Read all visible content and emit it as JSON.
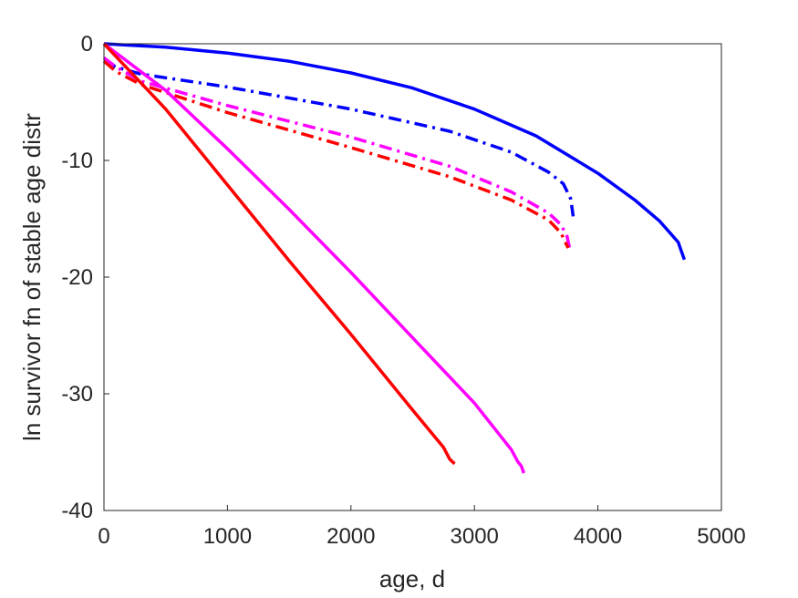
{
  "chart_data": {
    "type": "line",
    "title": "",
    "xlabel": "age, d",
    "ylabel": "ln survivor fn of stable age distr",
    "xlim": [
      0,
      5000
    ],
    "ylim": [
      -40,
      0
    ],
    "xticks": [
      0,
      1000,
      2000,
      3000,
      4000,
      5000
    ],
    "yticks": [
      0,
      -10,
      -20,
      -30,
      -40
    ],
    "xtick_labels": [
      "0",
      "1000",
      "2000",
      "3000",
      "4000",
      "5000"
    ],
    "ytick_labels": [
      "0",
      "-10",
      "-20",
      "-30",
      "-40"
    ],
    "grid": false,
    "legend": "none",
    "series": [
      {
        "color": "#0000ff",
        "style": "solid",
        "x": [
          0,
          500,
          1000,
          1500,
          2000,
          2500,
          3000,
          3500,
          4000,
          4300,
          4500,
          4650,
          4700
        ],
        "y": [
          0,
          -0.3,
          -0.8,
          -1.5,
          -2.5,
          -3.8,
          -5.6,
          -7.9,
          -11.1,
          -13.4,
          -15.2,
          -17.0,
          -18.5
        ]
      },
      {
        "color": "#0000ff",
        "style": "dashdot",
        "x": [
          0,
          100,
          300,
          1000,
          2000,
          2800,
          3300,
          3600,
          3720,
          3780,
          3800
        ],
        "y": [
          -1.5,
          -2.0,
          -2.6,
          -3.7,
          -5.6,
          -7.5,
          -9.3,
          -11.0,
          -12.0,
          -13.3,
          -14.8
        ]
      },
      {
        "color": "#ff00ff",
        "style": "dashdot",
        "x": [
          0,
          100,
          300,
          1000,
          2000,
          2800,
          3300,
          3600,
          3700,
          3750,
          3770
        ],
        "y": [
          -1.2,
          -2.0,
          -3.2,
          -5.3,
          -8.0,
          -10.5,
          -12.7,
          -14.5,
          -15.5,
          -16.5,
          -17.5
        ]
      },
      {
        "color": "#ff0000",
        "style": "dashdot",
        "x": [
          0,
          100,
          300,
          1000,
          2000,
          2800,
          3300,
          3600,
          3700,
          3740,
          3760
        ],
        "y": [
          -1.5,
          -2.4,
          -3.5,
          -5.9,
          -8.9,
          -11.4,
          -13.4,
          -15.1,
          -16.2,
          -17.1,
          -17.5
        ]
      },
      {
        "color": "#ff00ff",
        "style": "solid",
        "x": [
          0,
          500,
          1000,
          1500,
          2000,
          2500,
          3000,
          3300,
          3350,
          3380,
          3400
        ],
        "y": [
          0,
          -4.0,
          -9.0,
          -14.2,
          -19.6,
          -25.2,
          -30.8,
          -34.8,
          -35.8,
          -36.2,
          -36.8
        ]
      },
      {
        "color": "#ff0000",
        "style": "solid",
        "x": [
          0,
          500,
          1000,
          1500,
          2000,
          2500,
          2750,
          2800,
          2840
        ],
        "y": [
          0,
          -5.6,
          -12.1,
          -18.6,
          -24.9,
          -31.4,
          -34.6,
          -35.6,
          -36.0
        ]
      }
    ]
  }
}
